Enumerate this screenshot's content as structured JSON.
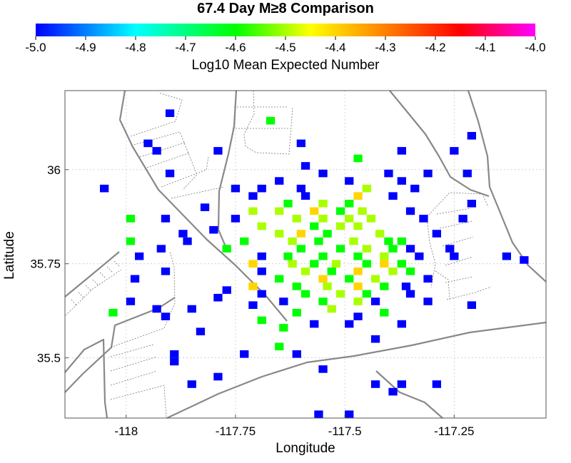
{
  "chart_data": {
    "type": "heatmap",
    "title": "67.4 Day M≥8 Comparison",
    "colorbar": {
      "label": "Log10 Mean Expected Number",
      "range": [
        -5.0,
        -4.0
      ],
      "ticks": [
        "-5.0",
        "-4.9",
        "-4.8",
        "-4.7",
        "-4.6",
        "-4.5",
        "-4.4",
        "-4.3",
        "-4.2",
        "-4.1",
        "-4.0"
      ],
      "colors": [
        "#0000ff",
        "#00ffff",
        "#00ff00",
        "#ffff00",
        "#ff8000",
        "#ff0000",
        "#ff00ff"
      ]
    },
    "xlabel": "Longitude",
    "ylabel": "Latitude",
    "xlim": [
      -118.14,
      -117.04
    ],
    "ylim": [
      35.34,
      36.21
    ],
    "xticks": [
      {
        "value": -118.0,
        "label": "-118"
      },
      {
        "value": -117.75,
        "label": "-117.75"
      },
      {
        "value": -117.5,
        "label": "-117.5"
      },
      {
        "value": -117.25,
        "label": "-117.25"
      }
    ],
    "yticks": [
      {
        "value": 36.0,
        "label": "36"
      },
      {
        "value": 35.75,
        "label": "35.75"
      },
      {
        "value": 35.5,
        "label": "35.5"
      }
    ],
    "grid": true,
    "cell_size_deg": 0.02,
    "cells": [
      [
        -117.9,
        36.15,
        -5.0
      ],
      [
        -117.67,
        36.13,
        -4.6
      ],
      [
        -117.21,
        36.09,
        -5.0
      ],
      [
        -117.6,
        36.07,
        -5.0
      ],
      [
        -117.95,
        36.07,
        -5.0
      ],
      [
        -117.37,
        36.05,
        -5.0
      ],
      [
        -117.25,
        36.05,
        -5.0
      ],
      [
        -117.93,
        36.05,
        -5.0
      ],
      [
        -117.79,
        36.05,
        -5.0
      ],
      [
        -117.47,
        36.03,
        -4.6
      ],
      [
        -117.59,
        36.01,
        -5.0
      ],
      [
        -117.9,
        35.99,
        -5.0
      ],
      [
        -117.55,
        35.99,
        -5.0
      ],
      [
        -117.4,
        35.99,
        -5.0
      ],
      [
        -117.31,
        35.99,
        -5.0
      ],
      [
        -117.22,
        35.99,
        -5.0
      ],
      [
        -117.65,
        35.97,
        -5.0
      ],
      [
        -117.49,
        35.97,
        -5.0
      ],
      [
        -117.37,
        35.97,
        -5.0
      ],
      [
        -117.34,
        35.95,
        -5.0
      ],
      [
        -117.69,
        35.95,
        -5.0
      ],
      [
        -117.45,
        35.95,
        -4.5
      ],
      [
        -117.75,
        35.95,
        -5.0
      ],
      [
        -118.05,
        35.95,
        -5.0
      ],
      [
        -117.6,
        35.95,
        -5.0
      ],
      [
        -117.71,
        35.93,
        -5.0
      ],
      [
        -117.47,
        35.93,
        -4.4
      ],
      [
        -117.59,
        35.93,
        -5.0
      ],
      [
        -117.39,
        35.93,
        -5.0
      ],
      [
        -117.21,
        35.91,
        -5.0
      ],
      [
        -117.63,
        35.91,
        -4.6
      ],
      [
        -117.49,
        35.91,
        -4.6
      ],
      [
        -117.55,
        35.91,
        -4.5
      ],
      [
        -117.82,
        35.9,
        -5.0
      ],
      [
        -117.57,
        35.89,
        -4.4
      ],
      [
        -117.51,
        35.89,
        -4.6
      ],
      [
        -117.65,
        35.89,
        -4.5
      ],
      [
        -117.71,
        35.89,
        -4.5
      ],
      [
        -117.35,
        35.89,
        -5.0
      ],
      [
        -117.46,
        35.89,
        -4.5
      ],
      [
        -117.99,
        35.87,
        -4.6
      ],
      [
        -117.91,
        35.87,
        -5.0
      ],
      [
        -117.32,
        35.87,
        -5.0
      ],
      [
        -117.61,
        35.87,
        -4.5
      ],
      [
        -117.55,
        35.87,
        -4.5
      ],
      [
        -117.49,
        35.87,
        -4.5
      ],
      [
        -117.44,
        35.87,
        -4.5
      ],
      [
        -117.23,
        35.87,
        -5.0
      ],
      [
        -117.75,
        35.87,
        -5.0
      ],
      [
        -117.69,
        35.85,
        -4.5
      ],
      [
        -117.57,
        35.85,
        -4.6
      ],
      [
        -117.51,
        35.85,
        -4.5
      ],
      [
        -117.47,
        35.85,
        -4.5
      ],
      [
        -117.87,
        35.83,
        -5.0
      ],
      [
        -117.8,
        35.84,
        -5.0
      ],
      [
        -117.65,
        35.83,
        -4.5
      ],
      [
        -117.6,
        35.83,
        -4.4
      ],
      [
        -117.54,
        35.83,
        -4.6
      ],
      [
        -117.42,
        35.83,
        -4.5
      ],
      [
        -117.29,
        35.83,
        -5.0
      ],
      [
        -117.99,
        35.81,
        -4.6
      ],
      [
        -117.86,
        35.81,
        -5.0
      ],
      [
        -117.73,
        35.81,
        -4.6
      ],
      [
        -117.62,
        35.81,
        -4.5
      ],
      [
        -117.56,
        35.81,
        -4.6
      ],
      [
        -117.48,
        35.81,
        -4.5
      ],
      [
        -117.4,
        35.81,
        -4.6
      ],
      [
        -117.37,
        35.81,
        -4.6
      ],
      [
        -117.6,
        35.79,
        -4.6
      ],
      [
        -117.51,
        35.79,
        -4.6
      ],
      [
        -117.45,
        35.79,
        -4.5
      ],
      [
        -117.39,
        35.79,
        -4.6
      ],
      [
        -117.77,
        35.79,
        -4.6
      ],
      [
        -117.35,
        35.79,
        -5.0
      ],
      [
        -117.26,
        35.79,
        -5.0
      ],
      [
        -117.92,
        35.79,
        -5.0
      ],
      [
        -117.69,
        35.77,
        -5.0
      ],
      [
        -117.63,
        35.77,
        -4.6
      ],
      [
        -117.55,
        35.77,
        -4.6
      ],
      [
        -117.47,
        35.77,
        -4.6
      ],
      [
        -117.41,
        35.77,
        -4.5
      ],
      [
        -117.33,
        35.77,
        -5.0
      ],
      [
        -117.25,
        35.77,
        -5.0
      ],
      [
        -117.97,
        35.77,
        -5.0
      ],
      [
        -117.13,
        35.77,
        -5.0
      ],
      [
        -117.71,
        35.75,
        -4.4
      ],
      [
        -117.62,
        35.75,
        -4.5
      ],
      [
        -117.57,
        35.75,
        -4.6
      ],
      [
        -117.52,
        35.75,
        -4.5
      ],
      [
        -117.45,
        35.75,
        -4.6
      ],
      [
        -117.41,
        35.75,
        -4.4
      ],
      [
        -117.37,
        35.75,
        -4.6
      ],
      [
        -117.09,
        35.76,
        -5.0
      ],
      [
        -117.69,
        35.73,
        -5.0
      ],
      [
        -117.59,
        35.73,
        -4.5
      ],
      [
        -117.53,
        35.73,
        -4.6
      ],
      [
        -117.47,
        35.73,
        -4.4
      ],
      [
        -117.39,
        35.73,
        -4.5
      ],
      [
        -117.35,
        35.73,
        -4.6
      ],
      [
        -117.91,
        35.73,
        -5.0
      ],
      [
        -117.65,
        35.71,
        -4.6
      ],
      [
        -117.55,
        35.71,
        -4.4
      ],
      [
        -117.49,
        35.71,
        -4.6
      ],
      [
        -117.43,
        35.71,
        -4.5
      ],
      [
        -117.31,
        35.71,
        -5.0
      ],
      [
        -117.98,
        35.71,
        -5.0
      ],
      [
        -117.71,
        35.69,
        -4.4
      ],
      [
        -117.61,
        35.69,
        -4.6
      ],
      [
        -117.54,
        35.69,
        -4.5
      ],
      [
        -117.47,
        35.69,
        -4.4
      ],
      [
        -117.41,
        35.69,
        -4.6
      ],
      [
        -117.36,
        35.69,
        -5.0
      ],
      [
        -117.77,
        35.68,
        -5.0
      ],
      [
        -117.69,
        35.67,
        -5.0
      ],
      [
        -117.59,
        35.67,
        -4.6
      ],
      [
        -117.51,
        35.67,
        -4.5
      ],
      [
        -117.45,
        35.67,
        -4.6
      ],
      [
        -117.35,
        35.67,
        -5.0
      ],
      [
        -117.79,
        35.66,
        -5.0
      ],
      [
        -117.99,
        35.65,
        -5.0
      ],
      [
        -117.64,
        35.65,
        -5.0
      ],
      [
        -117.55,
        35.65,
        -4.6
      ],
      [
        -117.47,
        35.65,
        -4.5
      ],
      [
        -117.43,
        35.65,
        -5.0
      ],
      [
        -117.31,
        35.65,
        -5.0
      ],
      [
        -117.21,
        35.64,
        -5.0
      ],
      [
        -117.71,
        35.64,
        -5.0
      ],
      [
        -117.85,
        35.63,
        -5.0
      ],
      [
        -117.93,
        35.63,
        -5.0
      ],
      [
        -117.53,
        35.63,
        -4.5
      ],
      [
        -117.61,
        35.62,
        -4.6
      ],
      [
        -118.03,
        35.62,
        -4.6
      ],
      [
        -117.41,
        35.62,
        -4.6
      ],
      [
        -117.47,
        35.61,
        -5.0
      ],
      [
        -117.91,
        35.61,
        -5.0
      ],
      [
        -117.49,
        35.59,
        -5.0
      ],
      [
        -117.69,
        35.6,
        -4.6
      ],
      [
        -117.57,
        35.59,
        -5.0
      ],
      [
        -117.64,
        35.58,
        -4.6
      ],
      [
        -117.37,
        35.59,
        -5.0
      ],
      [
        -117.83,
        35.57,
        -5.0
      ],
      [
        -117.43,
        35.55,
        -5.0
      ],
      [
        -117.65,
        35.53,
        -4.6
      ],
      [
        -117.89,
        35.51,
        -5.0
      ],
      [
        -117.73,
        35.51,
        -5.0
      ],
      [
        -117.61,
        35.51,
        -5.0
      ],
      [
        -117.89,
        35.49,
        -5.0
      ],
      [
        -117.55,
        35.47,
        -5.0
      ],
      [
        -117.79,
        35.45,
        -5.0
      ],
      [
        -117.43,
        35.43,
        -5.0
      ],
      [
        -117.37,
        35.43,
        -5.0
      ],
      [
        -117.29,
        35.43,
        -5.0
      ],
      [
        -117.85,
        35.43,
        -5.0
      ],
      [
        -117.39,
        35.41,
        -5.0
      ],
      [
        -117.56,
        35.35,
        -5.0
      ],
      [
        -117.49,
        35.35,
        -5.0
      ]
    ]
  }
}
